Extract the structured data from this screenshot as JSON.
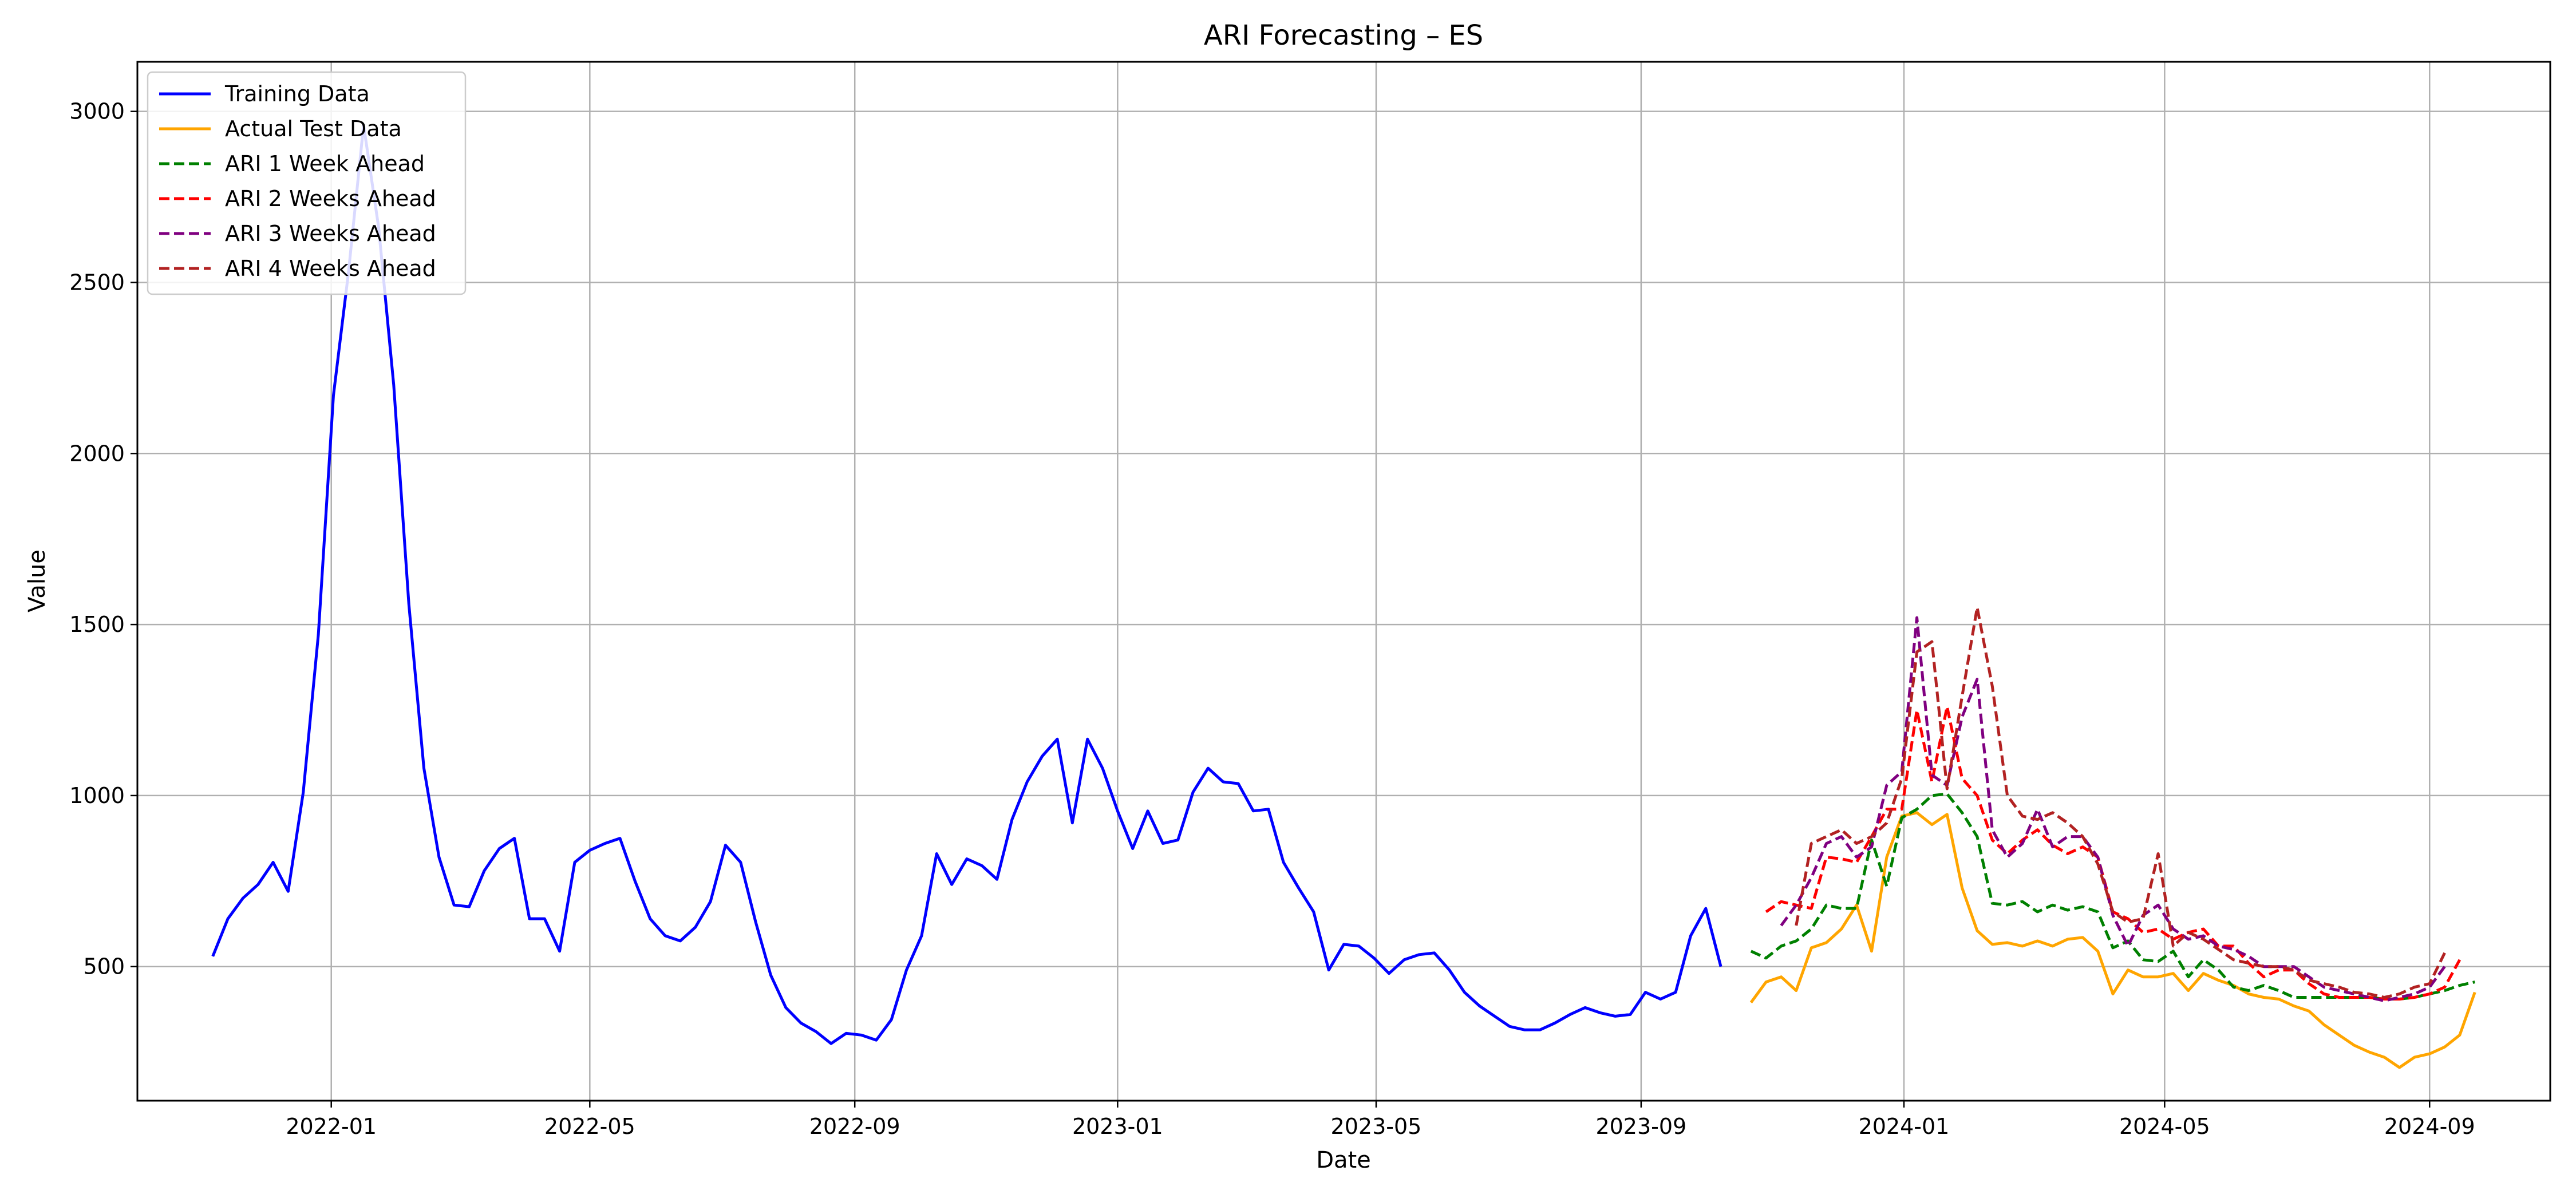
{
  "chart_data": {
    "type": "line",
    "title": "ARI Forecasting – ES",
    "xlabel": "Date",
    "ylabel": "Value",
    "grid": true,
    "legend_position": "top-left",
    "xlim": [
      "2021-10-03",
      "2024-10-27"
    ],
    "ylim": [
      108,
      3145
    ],
    "x_ticks": [
      "2022-01-01",
      "2022-05-01",
      "2022-09-01",
      "2023-01-01",
      "2023-05-01",
      "2023-09-01",
      "2024-01-01",
      "2024-05-01",
      "2024-09-01"
    ],
    "x_tick_labels": [
      "2022-01",
      "2022-05",
      "2022-09",
      "2023-01",
      "2023-05",
      "2023-09",
      "2024-01",
      "2024-05",
      "2024-09"
    ],
    "y_ticks": [
      500,
      1000,
      1500,
      2000,
      2500,
      3000
    ],
    "y_tick_labels": [
      "500",
      "1000",
      "1500",
      "2000",
      "2500",
      "3000"
    ],
    "series": [
      {
        "name": "Training Data",
        "color": "#0000ff",
        "style": "solid",
        "start": "2021-11-07",
        "step_days": 7,
        "values": [
          530,
          640,
          700,
          740,
          805,
          720,
          1010,
          1470,
          2170,
          2530,
          2960,
          2660,
          2200,
          1560,
          1080,
          820,
          680,
          675,
          780,
          845,
          875,
          640,
          640,
          545,
          805,
          840,
          860,
          875,
          750,
          640,
          590,
          575,
          615,
          690,
          855,
          805,
          630,
          475,
          380,
          335,
          310,
          275,
          305,
          300,
          285,
          345,
          490,
          590,
          830,
          740,
          815,
          795,
          755,
          930,
          1040,
          1115,
          1165,
          920,
          1165,
          1080,
          955,
          845,
          955,
          860,
          870,
          1010,
          1080,
          1040,
          1035,
          955,
          960,
          805,
          730,
          660,
          490,
          565,
          560,
          525,
          480,
          520,
          535,
          540,
          490,
          425,
          385,
          355,
          325,
          315,
          315,
          335,
          360,
          380,
          365,
          355,
          360,
          425,
          405,
          425,
          590,
          670,
          500
        ]
      },
      {
        "name": "Actual Test Data",
        "color": "#ffa500",
        "style": "solid",
        "start": "2023-10-22",
        "step_days": 7,
        "values": [
          395,
          455,
          470,
          430,
          555,
          570,
          610,
          680,
          545,
          820,
          940,
          950,
          915,
          945,
          730,
          605,
          565,
          570,
          560,
          575,
          560,
          580,
          585,
          545,
          420,
          490,
          470,
          470,
          480,
          430,
          480,
          460,
          445,
          420,
          410,
          405,
          385,
          370,
          330,
          300,
          270,
          250,
          235,
          205,
          235,
          245,
          265,
          300,
          425
        ]
      },
      {
        "name": "ARI 1 Week Ahead",
        "color": "#008000",
        "style": "dashed",
        "start": "2023-10-22",
        "step_days": 7,
        "values": [
          545,
          525,
          560,
          575,
          610,
          680,
          670,
          670,
          870,
          735,
          935,
          960,
          1000,
          1005,
          950,
          880,
          685,
          680,
          690,
          660,
          680,
          665,
          675,
          660,
          555,
          575,
          520,
          515,
          545,
          470,
          520,
          490,
          440,
          430,
          445,
          430,
          410,
          410,
          410,
          410,
          410,
          410,
          405,
          405,
          410,
          420,
          430,
          445,
          455
        ]
      },
      {
        "name": "ARI 2 Weeks Ahead",
        "color": "#ff0000",
        "style": "dashed",
        "start": "2023-10-29",
        "step_days": 7,
        "values": [
          660,
          690,
          680,
          670,
          820,
          815,
          805,
          880,
          960,
          960,
          1250,
          1040,
          1260,
          1050,
          1000,
          870,
          830,
          870,
          900,
          855,
          830,
          850,
          820,
          660,
          640,
          600,
          610,
          580,
          600,
          610,
          560,
          560,
          510,
          470,
          490,
          490,
          450,
          420,
          410,
          410,
          410,
          405,
          405,
          410,
          420,
          440,
          520
        ]
      },
      {
        "name": "ARI 3 Weeks Ahead",
        "color": "#800080",
        "style": "dashed",
        "start": "2023-11-05",
        "step_days": 7,
        "values": [
          620,
          680,
          760,
          860,
          880,
          820,
          850,
          1030,
          1070,
          1520,
          1060,
          1030,
          1230,
          1340,
          900,
          820,
          860,
          960,
          850,
          880,
          880,
          820,
          650,
          560,
          650,
          680,
          610,
          580,
          590,
          560,
          550,
          530,
          500,
          500,
          500,
          470,
          440,
          430,
          420,
          410,
          400,
          410,
          420,
          440,
          500
        ]
      },
      {
        "name": "ARI 4 Weeks Ahead",
        "color": "#b22222",
        "style": "dashed",
        "start": "2023-11-12",
        "step_days": 7,
        "values": [
          620,
          860,
          880,
          900,
          860,
          880,
          920,
          1050,
          1420,
          1450,
          1020,
          1290,
          1550,
          1320,
          1000,
          940,
          930,
          950,
          920,
          880,
          800,
          660,
          630,
          640,
          830,
          560,
          600,
          580,
          550,
          520,
          510,
          500,
          500,
          490,
          460,
          450,
          440,
          425,
          420,
          410,
          420,
          440,
          450,
          540
        ]
      }
    ]
  }
}
